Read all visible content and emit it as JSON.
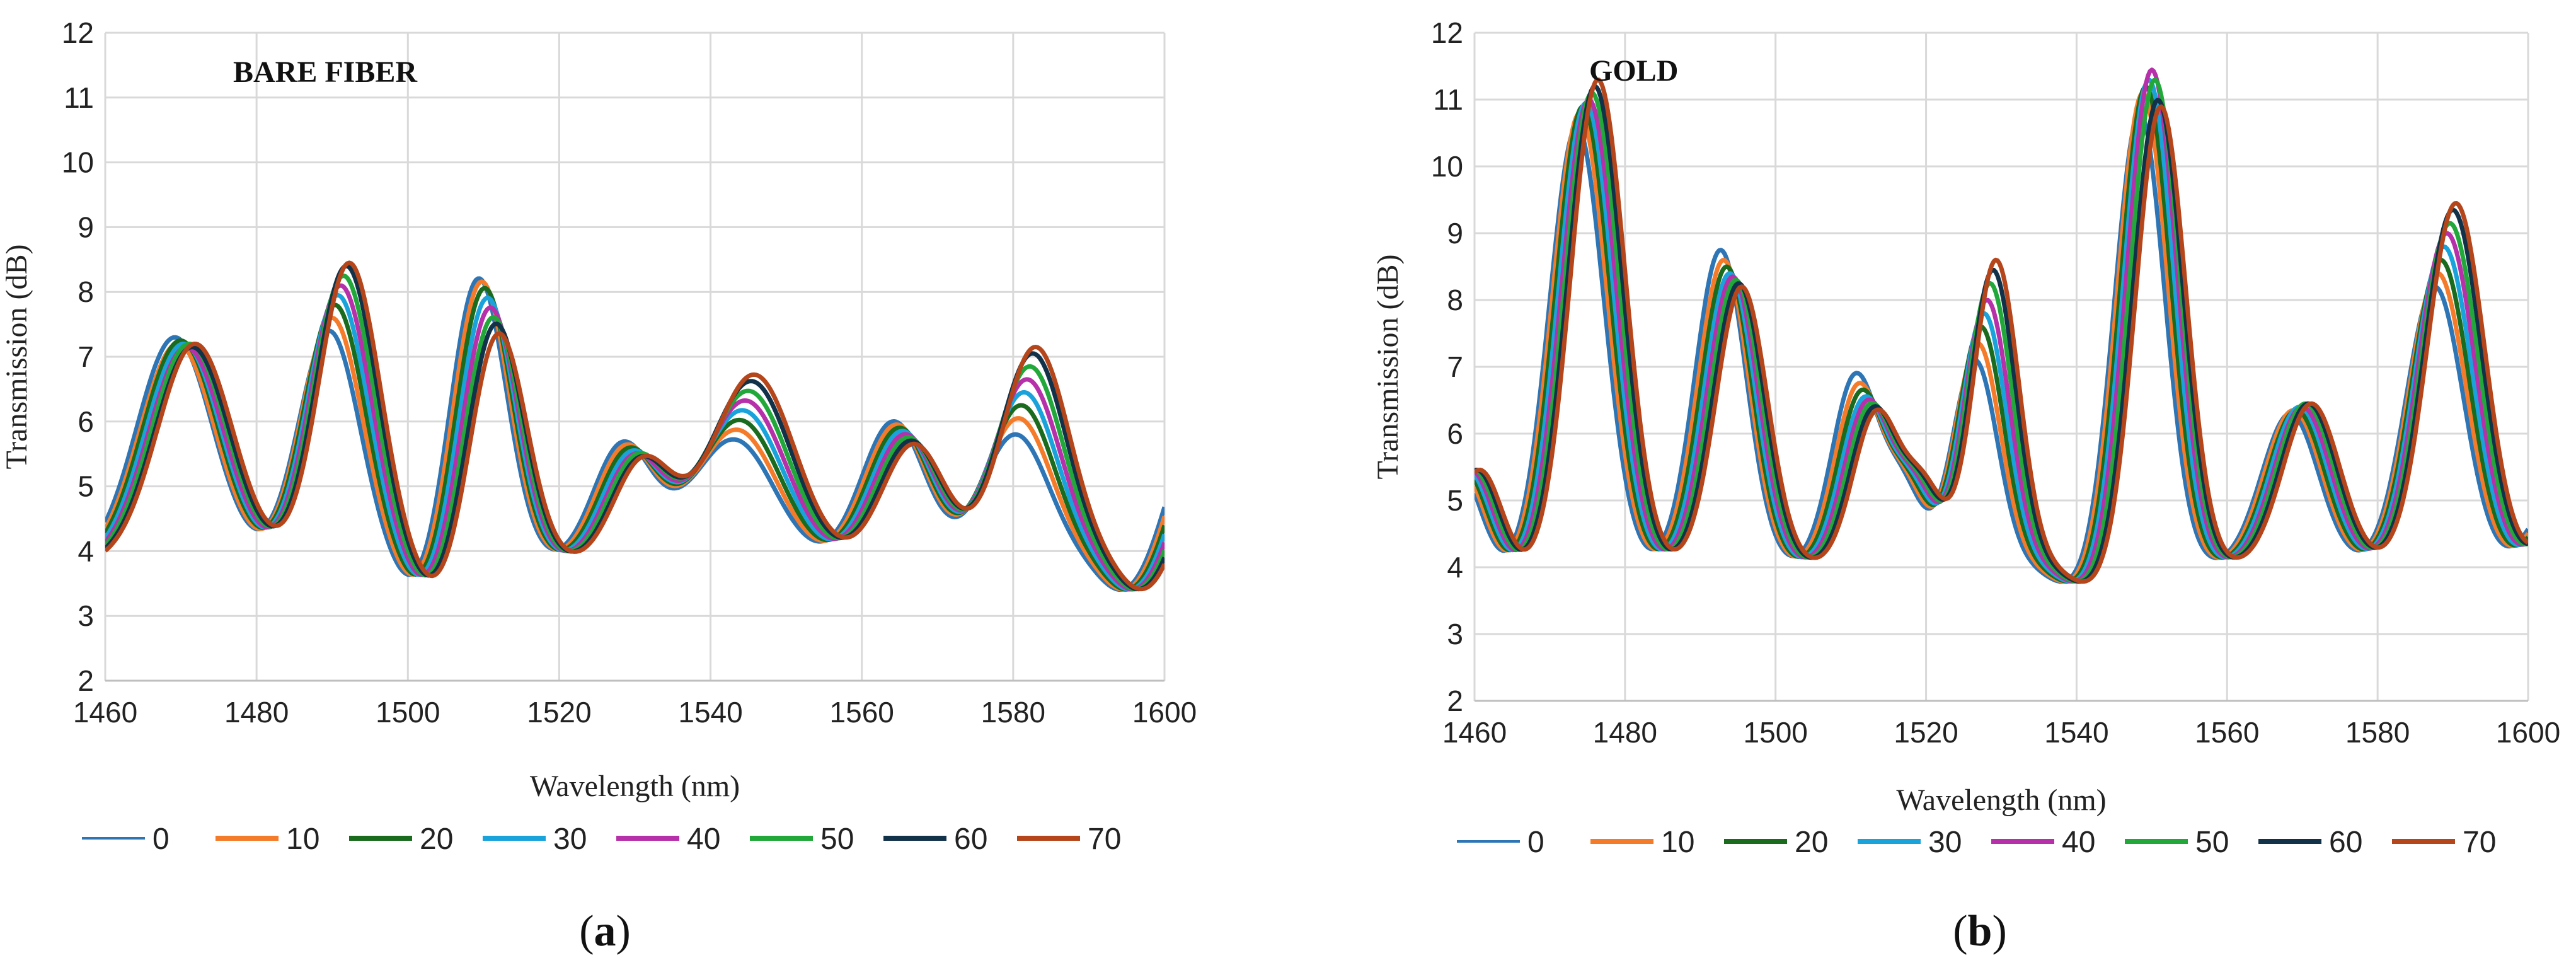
{
  "chart_data": [
    {
      "type": "line",
      "panel": "a",
      "title": "BARE FIBER",
      "xlabel": "Wavelength (nm)",
      "ylabel": "Transmission (dB)",
      "xlim": [
        1460,
        1600
      ],
      "ylim": [
        2,
        12
      ],
      "xticks": [
        1460,
        1480,
        1500,
        1520,
        1540,
        1560,
        1580,
        1600
      ],
      "yticks": [
        2,
        3,
        4,
        5,
        6,
        7,
        8,
        9,
        10,
        11,
        12
      ],
      "grid": true,
      "legend_position": "bottom",
      "shift_per_series_nm": 0.38,
      "series": [
        {
          "name": "0",
          "color": "#2E75B6",
          "shift": 0,
          "peak_values": [
            7.3,
            7.4,
            8.25,
            5.55,
            5.7,
            6.0,
            5.8
          ]
        },
        {
          "name": "10",
          "color": "#F47B2A",
          "shift": 1,
          "peak_values": [
            7.2,
            7.6,
            8.2,
            5.5,
            5.85,
            5.95,
            6.05
          ]
        },
        {
          "name": "20",
          "color": "#1B6B1F",
          "shift": 2,
          "peak_values": [
            7.25,
            7.8,
            8.1,
            5.45,
            6.0,
            5.9,
            6.25
          ]
        },
        {
          "name": "30",
          "color": "#1AA3DA",
          "shift": 3,
          "peak_values": [
            7.2,
            7.95,
            7.95,
            5.4,
            6.15,
            5.85,
            6.45
          ]
        },
        {
          "name": "40",
          "color": "#B530A9",
          "shift": 4,
          "peak_values": [
            7.15,
            8.1,
            7.8,
            5.35,
            6.3,
            5.8,
            6.65
          ]
        },
        {
          "name": "50",
          "color": "#22A83A",
          "shift": 5,
          "peak_values": [
            7.2,
            8.25,
            7.65,
            5.35,
            6.45,
            5.75,
            6.85
          ]
        },
        {
          "name": "60",
          "color": "#12324A",
          "shift": 6,
          "peak_values": [
            7.15,
            8.4,
            7.55,
            5.3,
            6.6,
            5.7,
            7.05
          ]
        },
        {
          "name": "70",
          "color": "#B5451B",
          "shift": 7,
          "peak_values": [
            7.2,
            8.45,
            7.4,
            5.3,
            6.7,
            5.65,
            7.15
          ]
        }
      ]
    },
    {
      "type": "line",
      "panel": "b",
      "title": "GOLD",
      "xlabel": "Wavelength (nm)",
      "ylabel": "Transmission (dB)",
      "xlim": [
        1460,
        1600
      ],
      "ylim": [
        2,
        12
      ],
      "xticks": [
        1460,
        1480,
        1500,
        1520,
        1540,
        1560,
        1580,
        1600
      ],
      "yticks": [
        2,
        3,
        4,
        5,
        6,
        7,
        8,
        9,
        10,
        11,
        12
      ],
      "grid": true,
      "legend_position": "bottom",
      "shift_per_series_nm": 0.4,
      "series": [
        {
          "name": "0",
          "color": "#2E75B6",
          "shift": 0,
          "peak_values": [
            10.6,
            8.75,
            6.85,
            7.1,
            10.8,
            6.3,
            8.2
          ]
        },
        {
          "name": "10",
          "color": "#F47B2A",
          "shift": 1,
          "peak_values": [
            10.8,
            8.6,
            6.7,
            7.35,
            11.1,
            6.35,
            8.4
          ]
        },
        {
          "name": "20",
          "color": "#1B6B1F",
          "shift": 2,
          "peak_values": [
            10.9,
            8.5,
            6.6,
            7.6,
            11.2,
            6.35,
            8.6
          ]
        },
        {
          "name": "30",
          "color": "#1AA3DA",
          "shift": 3,
          "peak_values": [
            10.95,
            8.4,
            6.5,
            7.8,
            11.3,
            6.4,
            8.8
          ]
        },
        {
          "name": "40",
          "color": "#B530A9",
          "shift": 4,
          "peak_values": [
            11.0,
            8.35,
            6.45,
            8.0,
            11.45,
            6.4,
            9.0
          ]
        },
        {
          "name": "50",
          "color": "#22A83A",
          "shift": 5,
          "peak_values": [
            11.1,
            8.3,
            6.4,
            8.25,
            11.3,
            6.45,
            9.15
          ]
        },
        {
          "name": "60",
          "color": "#12324A",
          "shift": 6,
          "peak_values": [
            11.2,
            8.25,
            6.35,
            8.45,
            11.0,
            6.45,
            9.35
          ]
        },
        {
          "name": "70",
          "color": "#B5451B",
          "shift": 7,
          "peak_values": [
            11.3,
            8.2,
            6.3,
            8.6,
            10.9,
            6.45,
            9.45
          ]
        }
      ]
    }
  ],
  "panel_labels": {
    "a": "(a)",
    "b": "(b)"
  }
}
